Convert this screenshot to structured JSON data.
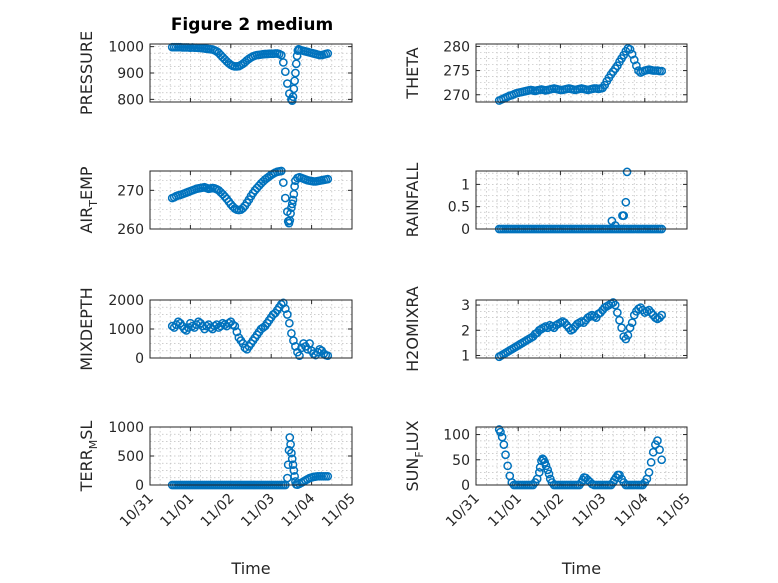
{
  "title": "Figure 2 medium",
  "marker_color": "#0072bd",
  "x_tick_labels": [
    "10/31",
    "11/01",
    "11/02",
    "11/03",
    "11/04",
    "11/05"
  ],
  "xlabel": "Time",
  "chart_data": [
    {
      "type": "scatter",
      "ylabel": "PRESSURE",
      "ylim": [
        790,
        1010
      ],
      "yticks": [
        800,
        900,
        1000
      ],
      "grid": true,
      "x_units": "days since 10/31 00:00",
      "x": [
        0.55,
        0.6,
        0.65,
        0.7,
        0.75,
        0.8,
        0.85,
        0.9,
        0.95,
        1.0,
        1.05,
        1.1,
        1.15,
        1.2,
        1.25,
        1.3,
        1.35,
        1.4,
        1.45,
        1.5,
        1.55,
        1.6,
        1.65,
        1.7,
        1.75,
        1.8,
        1.85,
        1.9,
        1.95,
        2.0,
        2.05,
        2.1,
        2.15,
        2.2,
        2.25,
        2.3,
        2.35,
        2.4,
        2.45,
        2.5,
        2.55,
        2.6,
        2.65,
        2.7,
        2.75,
        2.8,
        2.85,
        2.9,
        2.95,
        3.0,
        3.05,
        3.1,
        3.15,
        3.2,
        3.25,
        3.3,
        3.35,
        3.4,
        3.45,
        3.5,
        3.52,
        3.54,
        3.56,
        3.58,
        3.6,
        3.62,
        3.64,
        3.66,
        3.68,
        3.7,
        3.75,
        3.8,
        3.85,
        3.9,
        3.95,
        4.0,
        4.05,
        4.1,
        4.15,
        4.2,
        4.25,
        4.3,
        4.35,
        4.4
      ],
      "y": [
        998,
        998,
        998,
        998,
        998,
        997,
        997,
        997,
        997,
        996,
        997,
        996,
        996,
        995,
        995,
        994,
        993,
        992,
        991,
        990,
        989,
        986,
        982,
        976,
        968,
        960,
        952,
        944,
        937,
        931,
        927,
        925,
        925,
        926,
        930,
        935,
        941,
        948,
        954,
        959,
        963,
        966,
        968,
        969,
        970,
        971,
        972,
        972,
        973,
        973,
        973,
        974,
        974,
        972,
        968,
        940,
        905,
        860,
        822,
        800,
        795,
        810,
        840,
        870,
        900,
        935,
        965,
        985,
        990,
        988,
        986,
        984,
        982,
        980,
        978,
        976,
        974,
        972,
        970,
        968,
        968,
        970,
        972,
        974
      ]
    },
    {
      "type": "scatter",
      "ylabel": "THETA",
      "ylim": [
        268.5,
        280.5
      ],
      "yticks": [
        270,
        275,
        280
      ],
      "grid": true,
      "x_units": "days since 10/31 00:00",
      "x": [
        0.55,
        0.6,
        0.65,
        0.7,
        0.75,
        0.8,
        0.85,
        0.9,
        0.95,
        1.0,
        1.05,
        1.1,
        1.15,
        1.2,
        1.25,
        1.3,
        1.35,
        1.4,
        1.45,
        1.5,
        1.55,
        1.6,
        1.65,
        1.7,
        1.75,
        1.8,
        1.85,
        1.9,
        1.95,
        2.0,
        2.05,
        2.1,
        2.15,
        2.2,
        2.25,
        2.3,
        2.35,
        2.4,
        2.45,
        2.5,
        2.55,
        2.6,
        2.65,
        2.7,
        2.75,
        2.8,
        2.85,
        2.9,
        2.95,
        3.0,
        3.05,
        3.1,
        3.15,
        3.2,
        3.25,
        3.3,
        3.35,
        3.4,
        3.45,
        3.5,
        3.55,
        3.6,
        3.65,
        3.7,
        3.75,
        3.8,
        3.85,
        3.9,
        3.95,
        4.0,
        4.05,
        4.1,
        4.15,
        4.2,
        4.25,
        4.3,
        4.35,
        4.4
      ],
      "y": [
        268.8,
        269.0,
        269.2,
        269.4,
        269.6,
        269.8,
        269.9,
        270.1,
        270.3,
        270.4,
        270.5,
        270.6,
        270.7,
        270.8,
        270.9,
        271.0,
        270.9,
        270.8,
        270.9,
        271.0,
        271.1,
        271.0,
        270.9,
        271.0,
        271.1,
        271.2,
        271.3,
        271.2,
        271.1,
        271.0,
        271.0,
        271.1,
        271.2,
        271.3,
        271.2,
        271.1,
        271.0,
        271.1,
        271.2,
        271.3,
        271.2,
        271.1,
        271.0,
        271.1,
        271.2,
        271.3,
        271.3,
        271.2,
        271.3,
        271.4,
        272.0,
        272.8,
        273.5,
        274.2,
        274.8,
        275.4,
        276.0,
        276.8,
        277.5,
        278.2,
        279.0,
        279.6,
        279.4,
        278.4,
        277.2,
        276.0,
        275.0,
        274.6,
        274.8,
        275.0,
        275.1,
        275.2,
        275.1,
        275.0,
        275.0,
        275.0,
        274.9,
        274.9
      ]
    },
    {
      "type": "scatter",
      "ylabel": "AIR_TEMP",
      "ylim": [
        260,
        275
      ],
      "yticks": [
        260,
        270
      ],
      "grid": true,
      "x_units": "days since 10/31 00:00",
      "x": [
        0.55,
        0.6,
        0.65,
        0.7,
        0.75,
        0.8,
        0.85,
        0.9,
        0.95,
        1.0,
        1.05,
        1.1,
        1.15,
        1.2,
        1.25,
        1.3,
        1.35,
        1.4,
        1.45,
        1.5,
        1.55,
        1.6,
        1.65,
        1.7,
        1.75,
        1.8,
        1.85,
        1.9,
        1.95,
        2.0,
        2.05,
        2.1,
        2.15,
        2.2,
        2.25,
        2.3,
        2.35,
        2.4,
        2.45,
        2.5,
        2.55,
        2.6,
        2.65,
        2.7,
        2.75,
        2.8,
        2.85,
        2.9,
        2.95,
        3.0,
        3.05,
        3.1,
        3.15,
        3.2,
        3.25,
        3.3,
        3.35,
        3.4,
        3.42,
        3.44,
        3.46,
        3.48,
        3.5,
        3.52,
        3.54,
        3.56,
        3.58,
        3.6,
        3.65,
        3.7,
        3.75,
        3.8,
        3.85,
        3.9,
        3.95,
        4.0,
        4.05,
        4.1,
        4.15,
        4.2,
        4.25,
        4.3,
        4.35,
        4.4
      ],
      "y": [
        268.0,
        268.2,
        268.5,
        268.7,
        268.8,
        269.0,
        269.2,
        269.4,
        269.6,
        269.8,
        270.0,
        270.2,
        270.4,
        270.5,
        270.6,
        270.7,
        270.8,
        270.6,
        270.4,
        270.5,
        270.6,
        270.5,
        270.3,
        270.0,
        269.5,
        269.0,
        268.4,
        267.8,
        267.1,
        266.4,
        265.8,
        265.3,
        265.0,
        264.9,
        265.0,
        265.4,
        266.0,
        266.8,
        267.6,
        268.5,
        269.3,
        270.0,
        270.6,
        271.2,
        271.8,
        272.3,
        272.8,
        273.2,
        273.6,
        274.0,
        274.3,
        274.6,
        274.8,
        274.9,
        275.0,
        272.0,
        268.0,
        264.5,
        262.0,
        261.5,
        262.2,
        264.0,
        265.5,
        266.5,
        267.5,
        269.0,
        271.0,
        272.5,
        273.2,
        273.4,
        273.2,
        273.0,
        272.8,
        272.6,
        272.5,
        272.4,
        272.3,
        272.3,
        272.4,
        272.5,
        272.6,
        272.7,
        272.8,
        272.9
      ]
    },
    {
      "type": "scatter",
      "ylabel": "RAINFALL",
      "ylim": [
        0,
        1.3
      ],
      "yticks": [
        0,
        0.5,
        1
      ],
      "grid": true,
      "x_units": "days since 10/31 00:00",
      "x": [
        0.55,
        0.6,
        0.65,
        0.7,
        0.75,
        0.8,
        0.85,
        0.9,
        0.95,
        1.0,
        1.05,
        1.1,
        1.15,
        1.2,
        1.25,
        1.3,
        1.35,
        1.4,
        1.45,
        1.5,
        1.55,
        1.6,
        1.65,
        1.7,
        1.75,
        1.8,
        1.85,
        1.9,
        1.95,
        2.0,
        2.05,
        2.1,
        2.15,
        2.2,
        2.25,
        2.3,
        2.35,
        2.4,
        2.45,
        2.5,
        2.55,
        2.6,
        2.65,
        2.7,
        2.75,
        2.8,
        2.85,
        2.9,
        2.95,
        3.0,
        3.05,
        3.1,
        3.15,
        3.2,
        3.25,
        3.3,
        3.35,
        3.4,
        3.45,
        3.5,
        3.55,
        3.6,
        3.65,
        3.7,
        3.75,
        3.8,
        3.85,
        3.9,
        3.95,
        4.0,
        4.05,
        4.1,
        4.15,
        4.2,
        4.25,
        4.3,
        4.35,
        4.4,
        3.22,
        3.3,
        3.47,
        3.5,
        3.55,
        3.58
      ],
      "y": [
        0,
        0,
        0,
        0,
        0,
        0,
        0,
        0,
        0,
        0,
        0,
        0,
        0,
        0,
        0,
        0,
        0,
        0,
        0,
        0,
        0,
        0,
        0,
        0,
        0,
        0,
        0,
        0,
        0,
        0,
        0,
        0,
        0,
        0,
        0,
        0,
        0,
        0,
        0,
        0,
        0,
        0,
        0,
        0,
        0,
        0,
        0,
        0,
        0,
        0,
        0,
        0,
        0,
        0,
        0,
        0,
        0,
        0,
        0,
        0,
        0,
        0,
        0,
        0,
        0,
        0,
        0,
        0,
        0,
        0,
        0,
        0,
        0,
        0,
        0,
        0,
        0,
        0,
        0.18,
        0.08,
        0.3,
        0.3,
        0.6,
        1.28
      ]
    },
    {
      "type": "scatter",
      "ylabel": "MIXDEPTH",
      "ylim": [
        0,
        2000
      ],
      "yticks": [
        0,
        1000,
        2000
      ],
      "grid": true,
      "x_units": "days since 10/31 00:00",
      "x": [
        0.55,
        0.6,
        0.65,
        0.7,
        0.75,
        0.8,
        0.85,
        0.9,
        0.95,
        1.0,
        1.05,
        1.1,
        1.15,
        1.2,
        1.25,
        1.3,
        1.35,
        1.4,
        1.45,
        1.5,
        1.55,
        1.6,
        1.65,
        1.7,
        1.75,
        1.8,
        1.85,
        1.9,
        1.95,
        2.0,
        2.05,
        2.1,
        2.15,
        2.2,
        2.25,
        2.3,
        2.35,
        2.4,
        2.45,
        2.5,
        2.55,
        2.6,
        2.65,
        2.7,
        2.75,
        2.8,
        2.85,
        2.9,
        2.95,
        3.0,
        3.05,
        3.1,
        3.15,
        3.2,
        3.25,
        3.3,
        3.35,
        3.4,
        3.45,
        3.5,
        3.55,
        3.6,
        3.65,
        3.7,
        3.75,
        3.8,
        3.85,
        3.9,
        3.95,
        4.0,
        4.05,
        4.1,
        4.15,
        4.2,
        4.25,
        4.3,
        4.35,
        4.4
      ],
      "y": [
        1100,
        1050,
        1150,
        1250,
        1200,
        1100,
        1000,
        950,
        1050,
        1200,
        1100,
        1050,
        1150,
        1250,
        1200,
        1100,
        1000,
        1100,
        1150,
        1050,
        1000,
        1100,
        1150,
        1050,
        1100,
        1200,
        1150,
        1100,
        1200,
        1250,
        1150,
        1100,
        900,
        700,
        600,
        500,
        350,
        300,
        400,
        500,
        600,
        700,
        800,
        900,
        1000,
        1050,
        1100,
        1200,
        1300,
        1400,
        1500,
        1550,
        1650,
        1750,
        1850,
        1900,
        1700,
        1500,
        1200,
        850,
        600,
        400,
        200,
        80,
        350,
        500,
        400,
        300,
        500,
        250,
        150,
        100,
        200,
        300,
        250,
        150,
        100,
        80
      ]
    },
    {
      "type": "scatter",
      "ylabel": "H2OMIXRA",
      "ylim": [
        0.9,
        3.2
      ],
      "yticks": [
        1,
        2,
        3
      ],
      "grid": true,
      "x_units": "days since 10/31 00:00",
      "x": [
        0.55,
        0.6,
        0.65,
        0.7,
        0.75,
        0.8,
        0.85,
        0.9,
        0.95,
        1.0,
        1.05,
        1.1,
        1.15,
        1.2,
        1.25,
        1.3,
        1.35,
        1.4,
        1.45,
        1.5,
        1.55,
        1.6,
        1.65,
        1.7,
        1.75,
        1.8,
        1.85,
        1.9,
        1.95,
        2.0,
        2.05,
        2.1,
        2.15,
        2.2,
        2.25,
        2.3,
        2.35,
        2.4,
        2.45,
        2.5,
        2.55,
        2.6,
        2.65,
        2.7,
        2.75,
        2.8,
        2.85,
        2.9,
        2.95,
        3.0,
        3.05,
        3.1,
        3.15,
        3.2,
        3.25,
        3.3,
        3.35,
        3.4,
        3.45,
        3.5,
        3.55,
        3.6,
        3.65,
        3.7,
        3.75,
        3.8,
        3.85,
        3.9,
        3.95,
        4.0,
        4.05,
        4.1,
        4.15,
        4.2,
        4.25,
        4.3,
        4.35,
        4.4
      ],
      "y": [
        0.95,
        1.0,
        1.05,
        1.1,
        1.15,
        1.2,
        1.25,
        1.3,
        1.35,
        1.4,
        1.45,
        1.5,
        1.55,
        1.6,
        1.65,
        1.7,
        1.75,
        1.85,
        1.9,
        2.0,
        2.05,
        2.1,
        2.15,
        2.1,
        2.2,
        2.15,
        2.1,
        2.2,
        2.25,
        2.3,
        2.35,
        2.3,
        2.2,
        2.1,
        2.0,
        2.05,
        2.15,
        2.25,
        2.3,
        2.35,
        2.3,
        2.4,
        2.5,
        2.55,
        2.6,
        2.55,
        2.5,
        2.65,
        2.7,
        2.8,
        2.9,
        2.95,
        3.0,
        3.05,
        3.1,
        3.0,
        2.7,
        2.4,
        2.1,
        1.75,
        1.65,
        1.8,
        2.1,
        2.3,
        2.6,
        2.75,
        2.85,
        2.9,
        2.8,
        2.7,
        2.75,
        2.8,
        2.7,
        2.6,
        2.5,
        2.45,
        2.5,
        2.6
      ]
    },
    {
      "type": "scatter",
      "ylabel": "TERR_MSL",
      "ylim": [
        0,
        1000
      ],
      "yticks": [
        0,
        500,
        1000
      ],
      "grid": true,
      "x_units": "days since 10/31 00:00",
      "x": [
        0.55,
        0.6,
        0.65,
        0.7,
        0.75,
        0.8,
        0.85,
        0.9,
        0.95,
        1.0,
        1.05,
        1.1,
        1.15,
        1.2,
        1.25,
        1.3,
        1.35,
        1.4,
        1.45,
        1.5,
        1.55,
        1.6,
        1.65,
        1.7,
        1.75,
        1.8,
        1.85,
        1.9,
        1.95,
        2.0,
        2.05,
        2.1,
        2.15,
        2.2,
        2.25,
        2.3,
        2.35,
        2.4,
        2.45,
        2.5,
        2.55,
        2.6,
        2.65,
        2.7,
        2.75,
        2.8,
        2.85,
        2.9,
        2.95,
        3.0,
        3.05,
        3.1,
        3.15,
        3.2,
        3.25,
        3.3,
        3.35,
        3.4,
        3.42,
        3.44,
        3.46,
        3.48,
        3.5,
        3.52,
        3.54,
        3.56,
        3.58,
        3.6,
        3.62,
        3.65,
        3.7,
        3.75,
        3.8,
        3.85,
        3.9,
        3.95,
        4.0,
        4.05,
        4.1,
        4.15,
        4.2,
        4.25,
        4.3,
        4.35,
        4.4
      ],
      "y": [
        0,
        0,
        0,
        0,
        0,
        0,
        0,
        0,
        0,
        0,
        0,
        0,
        0,
        0,
        0,
        0,
        0,
        0,
        0,
        0,
        0,
        0,
        0,
        0,
        0,
        0,
        0,
        0,
        0,
        0,
        0,
        0,
        0,
        0,
        0,
        0,
        0,
        0,
        0,
        0,
        0,
        0,
        0,
        0,
        0,
        0,
        0,
        0,
        0,
        0,
        0,
        0,
        0,
        0,
        0,
        0,
        0,
        120,
        350,
        600,
        820,
        700,
        550,
        450,
        350,
        250,
        150,
        60,
        10,
        5,
        20,
        40,
        60,
        80,
        100,
        120,
        130,
        140,
        145,
        150,
        150,
        150,
        150,
        150,
        150
      ]
    },
    {
      "type": "scatter",
      "ylabel": "SUN_FLUX",
      "ylim": [
        0,
        115
      ],
      "yticks": [
        0,
        50,
        100
      ],
      "grid": true,
      "x_units": "days since 10/31 00:00",
      "x": [
        0.55,
        0.58,
        0.62,
        0.66,
        0.7,
        0.75,
        0.8,
        0.85,
        0.9,
        0.95,
        1.0,
        1.05,
        1.1,
        1.15,
        1.2,
        1.25,
        1.3,
        1.35,
        1.4,
        1.45,
        1.5,
        1.52,
        1.55,
        1.58,
        1.6,
        1.63,
        1.66,
        1.7,
        1.73,
        1.76,
        1.8,
        1.85,
        1.9,
        1.95,
        2.0,
        2.05,
        2.1,
        2.15,
        2.2,
        2.25,
        2.3,
        2.35,
        2.4,
        2.45,
        2.5,
        2.53,
        2.56,
        2.6,
        2.65,
        2.7,
        2.75,
        2.8,
        2.85,
        2.9,
        2.95,
        3.0,
        3.05,
        3.1,
        3.15,
        3.2,
        3.25,
        3.28,
        3.32,
        3.36,
        3.4,
        3.45,
        3.5,
        3.55,
        3.6,
        3.65,
        3.7,
        3.75,
        3.8,
        3.85,
        3.9,
        3.95,
        4.0,
        4.05,
        4.1,
        4.15,
        4.2,
        4.25,
        4.3,
        4.35,
        4.4
      ],
      "y": [
        110,
        105,
        95,
        80,
        60,
        38,
        18,
        5,
        0,
        0,
        0,
        0,
        0,
        0,
        0,
        0,
        0,
        0,
        5,
        12,
        25,
        35,
        48,
        52,
        50,
        45,
        38,
        30,
        22,
        12,
        5,
        0,
        0,
        0,
        0,
        0,
        0,
        0,
        0,
        0,
        0,
        0,
        0,
        0,
        5,
        10,
        15,
        14,
        10,
        6,
        2,
        0,
        0,
        0,
        0,
        0,
        0,
        0,
        0,
        0,
        5,
        10,
        15,
        20,
        20,
        12,
        5,
        0,
        0,
        0,
        0,
        0,
        0,
        0,
        0,
        0,
        5,
        12,
        25,
        45,
        65,
        80,
        88,
        70,
        50
      ]
    }
  ]
}
